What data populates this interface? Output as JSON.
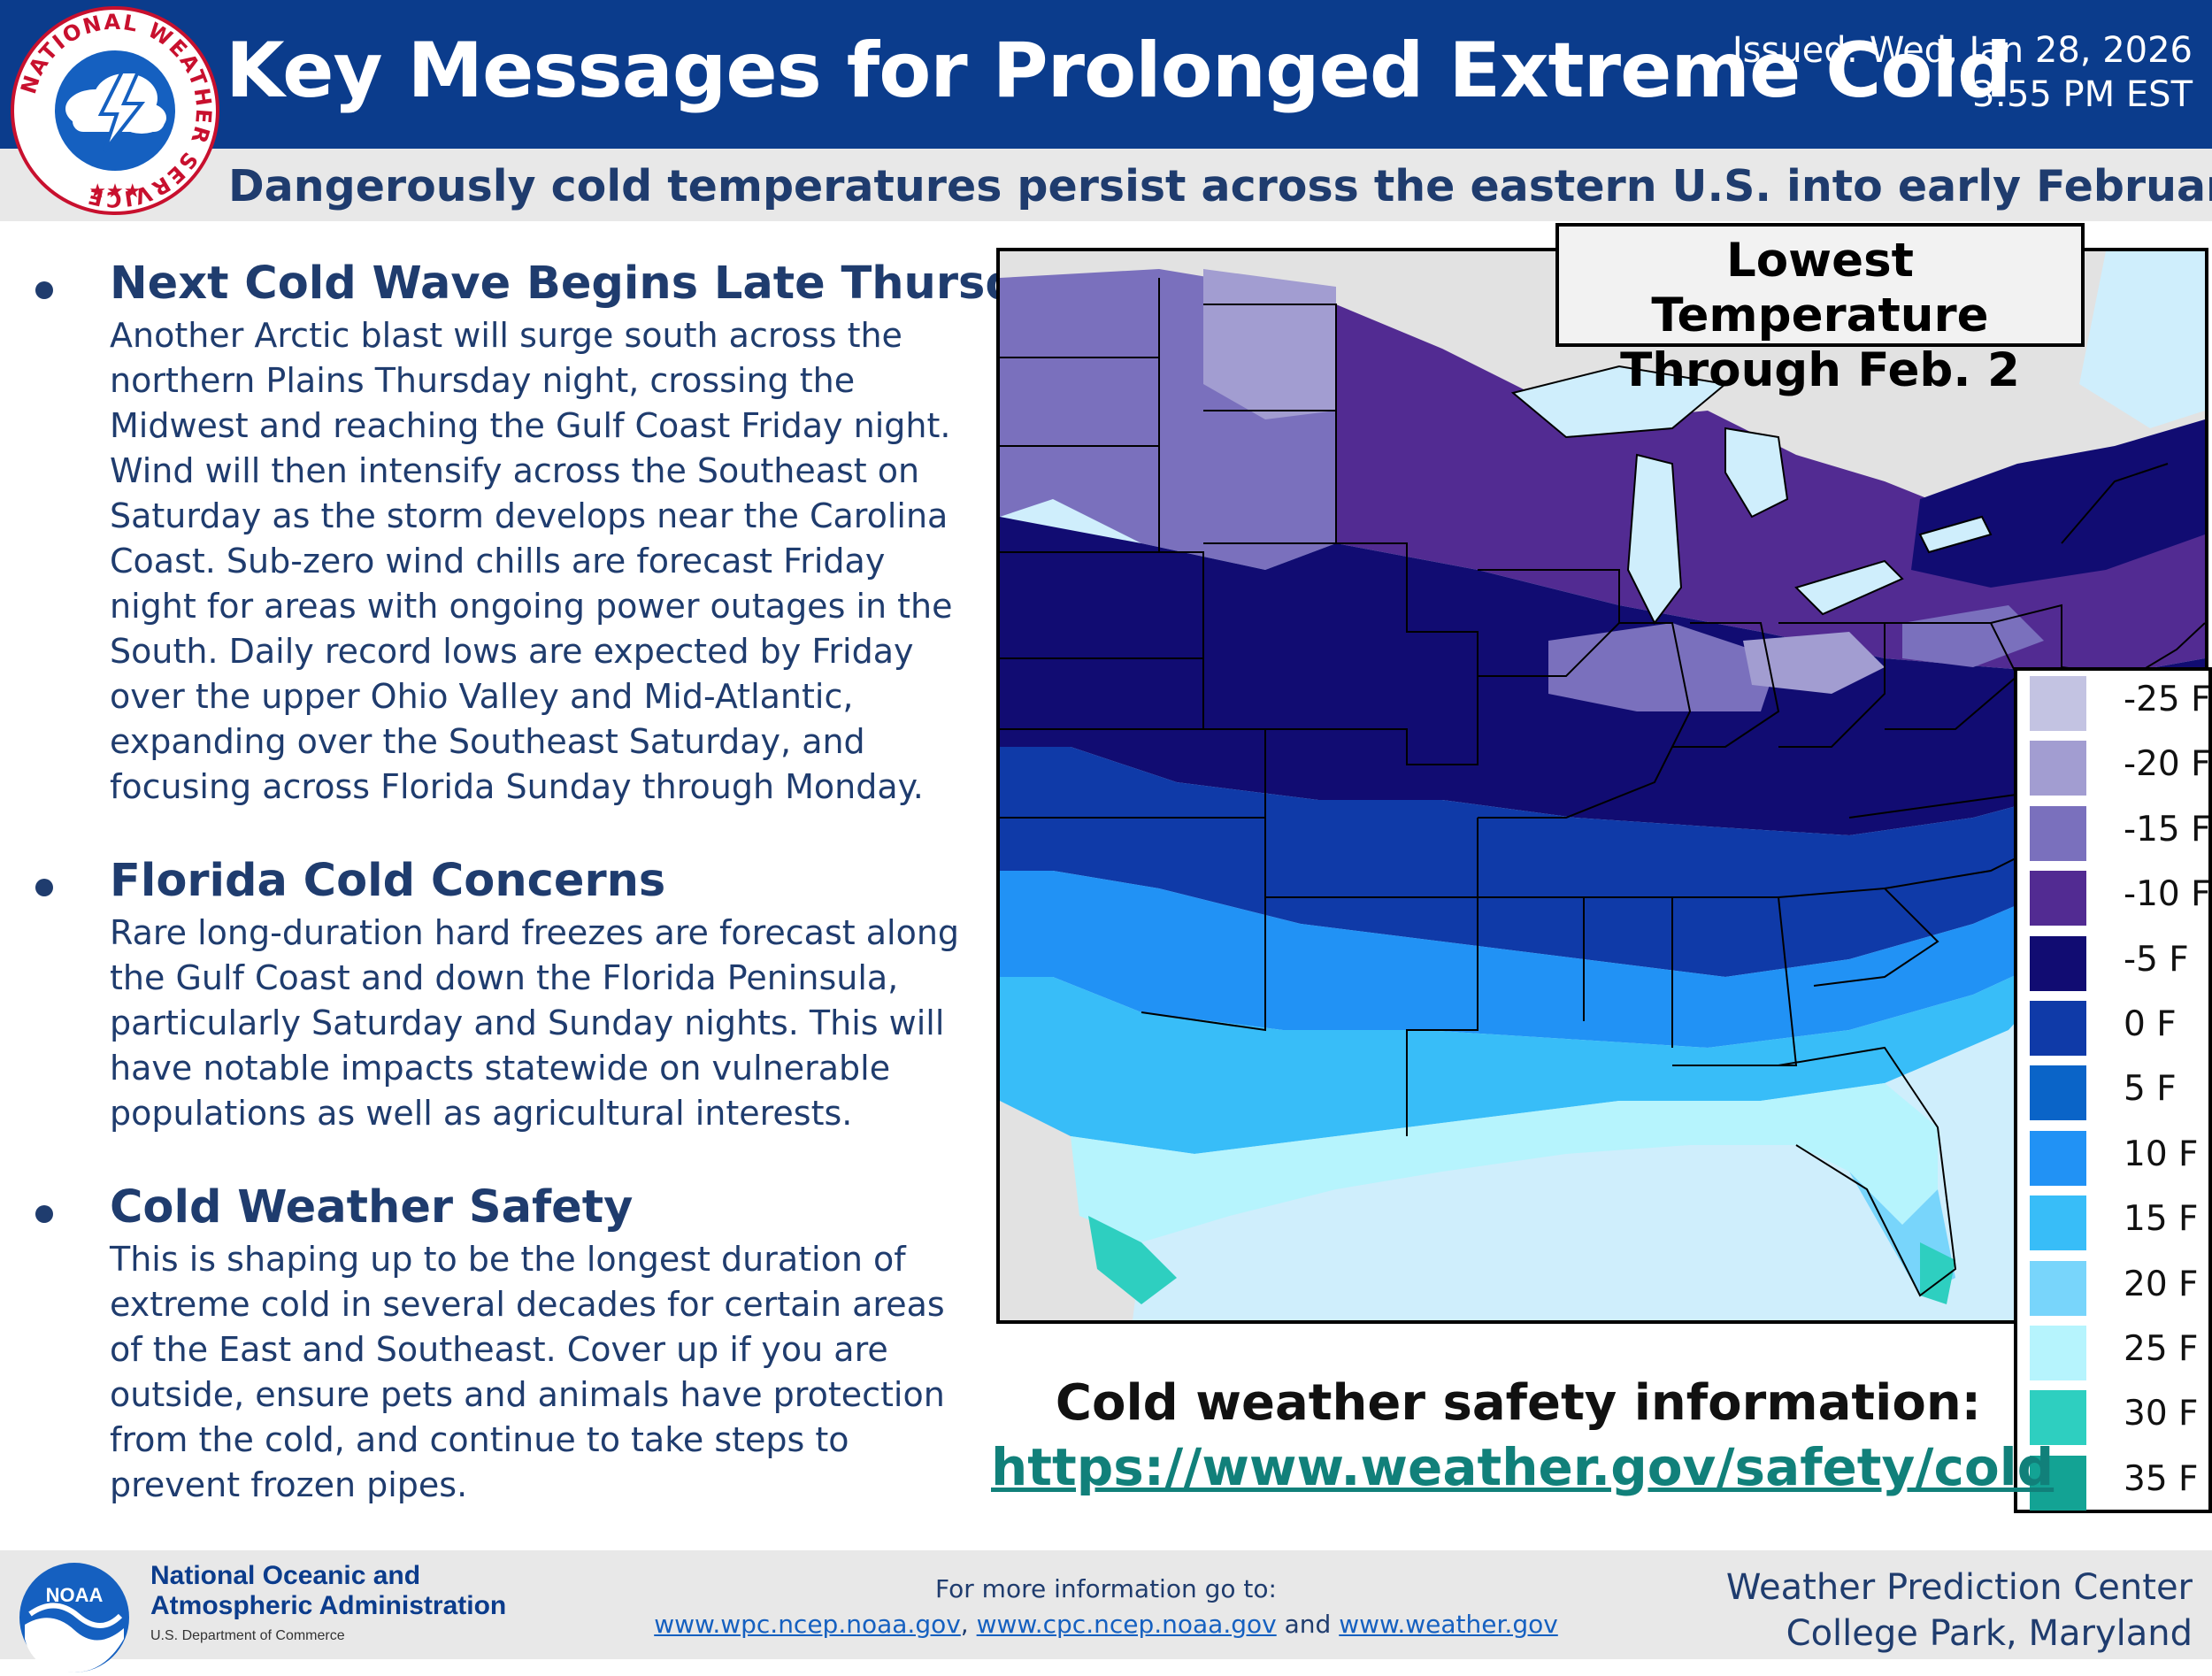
{
  "header": {
    "title": "Key Messages for Prolonged Extreme Cold",
    "issued_line1": "Issued: Wed, Jan 28, 2026",
    "issued_line2": "3:55 PM EST",
    "subtitle": "Dangerously cold temperatures persist across the eastern U.S. into early February",
    "logo": {
      "text": "NATIONAL WEATHER SERVICE",
      "stars": "★★★",
      "icon": "nws-storm-cloud-icon"
    }
  },
  "bullets": [
    {
      "heading": "Next Cold Wave Begins Late Thursday",
      "body": "Another Arctic blast will surge south across the northern Plains Thursday night, crossing the Midwest and reaching the Gulf Coast Friday night. Wind will then intensify across the Southeast on Saturday as the storm develops near the Carolina Coast. Sub-zero wind chills are forecast Friday night for areas with ongoing power outages in the South. Daily record lows are expected by Friday over the upper Ohio Valley and Mid-Atlantic, expanding over the Southeast Saturday, and focusing across Florida Sunday through Monday."
    },
    {
      "heading": "Florida Cold Concerns",
      "body": "Rare long-duration hard freezes are forecast along the Gulf Coast and down the Florida Peninsula, particularly Saturday and Sunday nights. This will have notable impacts statewide on vulnerable populations as well as agricultural interests."
    },
    {
      "heading": "Cold Weather Safety",
      "body": "This is shaping up to be the longest duration of extreme cold in several decades for certain areas of the East and Southeast. Cover up if you are outside, ensure pets and animals have protection from the cold, and continue to take steps to prevent frozen pipes."
    }
  ],
  "map": {
    "title_line1": "Lowest Temperature",
    "title_line2": "Through Feb. 2",
    "legend": [
      {
        "label": "-25 F",
        "color": "#c3c3e2"
      },
      {
        "label": "-20 F",
        "color": "#a29dd1"
      },
      {
        "label": "-15 F",
        "color": "#7a70bd"
      },
      {
        "label": "-10 F",
        "color": "#522b92"
      },
      {
        "label": "-5 F",
        "color": "#110c72"
      },
      {
        "label": "0 F",
        "color": "#0f3aa8"
      },
      {
        "label": "5 F",
        "color": "#0a64c8"
      },
      {
        "label": "10 F",
        "color": "#2192f5"
      },
      {
        "label": "15 F",
        "color": "#38bdf8"
      },
      {
        "label": "20 F",
        "color": "#78d5fb"
      },
      {
        "label": "25 F",
        "color": "#b6f4fd"
      },
      {
        "label": "30 F",
        "color": "#2ecfc0"
      },
      {
        "label": "35 F",
        "color": "#13a394"
      }
    ]
  },
  "safety": {
    "label": "Cold weather safety information:",
    "url": "https://www.weather.gov/safety/cold"
  },
  "footer": {
    "agency_line1": "National Oceanic and",
    "agency_line2": "Atmospheric Administration",
    "department": "U.S. Department of Commerce",
    "noaa_logo_text": "NOAA",
    "more_info": "For more information go to:",
    "link1": "www.wpc.ncep.noaa.gov",
    "link2": "www.cpc.ncep.noaa.gov",
    "link_and": "and",
    "link3": "www.weather.gov",
    "center_line1": "Weather Prediction Center",
    "center_line2": "College Park, Maryland"
  }
}
